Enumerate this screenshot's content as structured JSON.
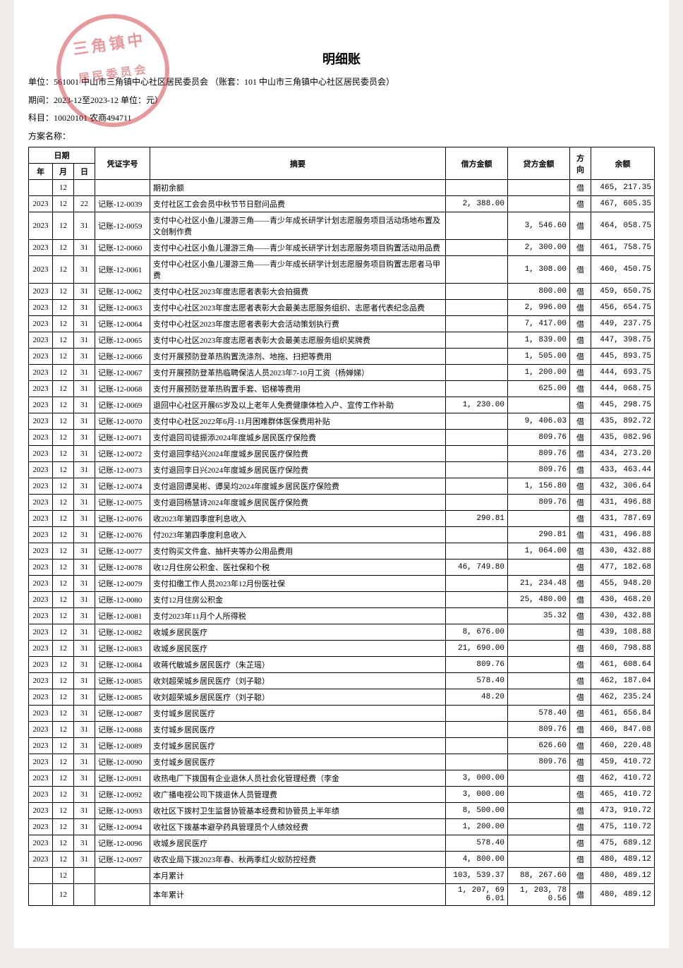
{
  "title": "明细账",
  "meta": {
    "unit": "单位：561001 中山市三角镇中心社区居民委员会   （账套：101 中山市三角镇中心社区居民委员会）",
    "period": "期间：2023-12至2023-12   单位：元）",
    "subject": "科目：10020101 农商494711",
    "plan": "方案名称："
  },
  "headers": {
    "date": "日期",
    "year": "年",
    "month": "月",
    "day": "日",
    "voucher": "凭证字号",
    "summary": "摘要",
    "debit": "借方金额",
    "credit": "贷方金额",
    "dir": "方向",
    "balance": "余额"
  },
  "stamp_text1": "三角镇中",
  "stamp_text2": "居民委员会",
  "rows": [
    {
      "year": "",
      "month": "12",
      "day": "",
      "voucher": "",
      "summary": "期初余额",
      "debit": "",
      "credit": "",
      "dir": "借",
      "balance": "465, 217.35"
    },
    {
      "year": "2023",
      "month": "12",
      "day": "22",
      "voucher": "记账-12-0039",
      "summary": "支付社区工会会员中秋节节日慰问品费",
      "debit": "2, 388.00",
      "credit": "",
      "dir": "借",
      "balance": "467, 605.35"
    },
    {
      "year": "2023",
      "month": "12",
      "day": "31",
      "voucher": "记账-12-0059",
      "summary": "支付中心社区小鱼儿漫游三角——青少年成长研学计划志愿服务项目活动场地布置及文创制作费",
      "debit": "",
      "credit": "3, 546.60",
      "dir": "借",
      "balance": "464, 058.75"
    },
    {
      "year": "2023",
      "month": "12",
      "day": "31",
      "voucher": "记账-12-0060",
      "summary": "支付中心社区小鱼儿漫游三角——青少年成长研学计划志愿服务项目购置活动用品费",
      "debit": "",
      "credit": "2, 300.00",
      "dir": "借",
      "balance": "461, 758.75"
    },
    {
      "year": "2023",
      "month": "12",
      "day": "31",
      "voucher": "记账-12-0061",
      "summary": "支付中心社区小鱼儿漫游三角——青少年成长研学计划志愿服务项目购置志愿者马甲费",
      "debit": "",
      "credit": "1, 308.00",
      "dir": "借",
      "balance": "460, 450.75"
    },
    {
      "year": "2023",
      "month": "12",
      "day": "31",
      "voucher": "记账-12-0062",
      "summary": "支付中心社区2023年度志愿者表彰大会拍摄费",
      "debit": "",
      "credit": "800.00",
      "dir": "借",
      "balance": "459, 650.75"
    },
    {
      "year": "2023",
      "month": "12",
      "day": "31",
      "voucher": "记账-12-0063",
      "summary": "支付中心社区2023年度志愿者表彰大会最美志愿服务组织、志愿者代表纪念品费",
      "debit": "",
      "credit": "2, 996.00",
      "dir": "借",
      "balance": "456, 654.75"
    },
    {
      "year": "2023",
      "month": "12",
      "day": "31",
      "voucher": "记账-12-0064",
      "summary": "支付中心社区2023年度志愿者表彰大会活动策划执行费",
      "debit": "",
      "credit": "7, 417.00",
      "dir": "借",
      "balance": "449, 237.75"
    },
    {
      "year": "2023",
      "month": "12",
      "day": "31",
      "voucher": "记账-12-0065",
      "summary": "支付中心社区2023年度志愿者表彰大会最美志愿服务组织奖牌费",
      "debit": "",
      "credit": "1, 839.00",
      "dir": "借",
      "balance": "447, 398.75"
    },
    {
      "year": "2023",
      "month": "12",
      "day": "31",
      "voucher": "记账-12-0066",
      "summary": "支付开展预防登革热购置洗涤剂、地拖、扫把等费用",
      "debit": "",
      "credit": "1, 505.00",
      "dir": "借",
      "balance": "445, 893.75"
    },
    {
      "year": "2023",
      "month": "12",
      "day": "31",
      "voucher": "记账-12-0067",
      "summary": "支付开展预防登革热临聘保洁人员2023年7-10月工资（杨婵娣）",
      "debit": "",
      "credit": "1, 200.00",
      "dir": "借",
      "balance": "444, 693.75"
    },
    {
      "year": "2023",
      "month": "12",
      "day": "31",
      "voucher": "记账-12-0068",
      "summary": "支付开展预防登革热购置手套、铝梯等费用",
      "debit": "",
      "credit": "625.00",
      "dir": "借",
      "balance": "444, 068.75"
    },
    {
      "year": "2023",
      "month": "12",
      "day": "31",
      "voucher": "记账-12-0069",
      "summary": "退回中心社区开展65岁及以上老年人免费健康体检入户、宣传工作补助",
      "debit": "1, 230.00",
      "credit": "",
      "dir": "借",
      "balance": "445, 298.75"
    },
    {
      "year": "2023",
      "month": "12",
      "day": "31",
      "voucher": "记账-12-0070",
      "summary": "支付中心社区2022年6月-11月困难群体医保费用补贴",
      "debit": "",
      "credit": "9, 406.03",
      "dir": "借",
      "balance": "435, 892.72"
    },
    {
      "year": "2023",
      "month": "12",
      "day": "31",
      "voucher": "记账-12-0071",
      "summary": "支付退回司徒振添2024年度城乡居民医疗保险费",
      "debit": "",
      "credit": "809.76",
      "dir": "借",
      "balance": "435, 082.96"
    },
    {
      "year": "2023",
      "month": "12",
      "day": "31",
      "voucher": "记账-12-0072",
      "summary": "支付退回李结兴2024年度城乡居民医疗保险费",
      "debit": "",
      "credit": "809.76",
      "dir": "借",
      "balance": "434, 273.20"
    },
    {
      "year": "2023",
      "month": "12",
      "day": "31",
      "voucher": "记账-12-0073",
      "summary": "支付退回李日兴2024年度城乡居民医疗保险费",
      "debit": "",
      "credit": "809.76",
      "dir": "借",
      "balance": "433, 463.44"
    },
    {
      "year": "2023",
      "month": "12",
      "day": "31",
      "voucher": "记账-12-0074",
      "summary": "支付退回谭吴彬、谭吴均2024年度城乡居民医疗保险费",
      "debit": "",
      "credit": "1, 156.80",
      "dir": "借",
      "balance": "432, 306.64"
    },
    {
      "year": "2023",
      "month": "12",
      "day": "31",
      "voucher": "记账-12-0075",
      "summary": "支付退回杨慧诗2024年度城乡居民医疗保险费",
      "debit": "",
      "credit": "809.76",
      "dir": "借",
      "balance": "431, 496.88"
    },
    {
      "year": "2023",
      "month": "12",
      "day": "31",
      "voucher": "记账-12-0076",
      "summary": "收2023年第四季度利息收入",
      "debit": "290.81",
      "credit": "",
      "dir": "借",
      "balance": "431, 787.69"
    },
    {
      "year": "2023",
      "month": "12",
      "day": "31",
      "voucher": "记账-12-0076",
      "summary": "付2023年第四季度利息收入",
      "debit": "",
      "credit": "290.81",
      "dir": "借",
      "balance": "431, 496.88"
    },
    {
      "year": "2023",
      "month": "12",
      "day": "31",
      "voucher": "记账-12-0077",
      "summary": "支付购买文件盒、抽杆夹等办公用品费用",
      "debit": "",
      "credit": "1, 064.00",
      "dir": "借",
      "balance": "430, 432.88"
    },
    {
      "year": "2023",
      "month": "12",
      "day": "31",
      "voucher": "记账-12-0078",
      "summary": "收12月住房公积金、医社保和个税",
      "debit": "46, 749.80",
      "credit": "",
      "dir": "借",
      "balance": "477, 182.68"
    },
    {
      "year": "2023",
      "month": "12",
      "day": "31",
      "voucher": "记账-12-0079",
      "summary": "支付扣缴工作人员2023年12月份医社保",
      "debit": "",
      "credit": "21, 234.48",
      "dir": "借",
      "balance": "455, 948.20"
    },
    {
      "year": "2023",
      "month": "12",
      "day": "31",
      "voucher": "记账-12-0080",
      "summary": "支付12月住房公积金",
      "debit": "",
      "credit": "25, 480.00",
      "dir": "借",
      "balance": "430, 468.20"
    },
    {
      "year": "2023",
      "month": "12",
      "day": "31",
      "voucher": "记账-12-0081",
      "summary": "支付2023年11月个人所得税",
      "debit": "",
      "credit": "35.32",
      "dir": "借",
      "balance": "430, 432.88"
    },
    {
      "year": "2023",
      "month": "12",
      "day": "31",
      "voucher": "记账-12-0082",
      "summary": "收城乡居民医疗",
      "debit": "8, 676.00",
      "credit": "",
      "dir": "借",
      "balance": "439, 108.88"
    },
    {
      "year": "2023",
      "month": "12",
      "day": "31",
      "voucher": "记账-12-0083",
      "summary": "收城乡居民医疗",
      "debit": "21, 690.00",
      "credit": "",
      "dir": "借",
      "balance": "460, 798.88"
    },
    {
      "year": "2023",
      "month": "12",
      "day": "31",
      "voucher": "记账-12-0084",
      "summary": "收蒋代敏城乡居民医疗（朱芷瑶）",
      "debit": "809.76",
      "credit": "",
      "dir": "借",
      "balance": "461, 608.64"
    },
    {
      "year": "2023",
      "month": "12",
      "day": "31",
      "voucher": "记账-12-0085",
      "summary": "收刘超荣城乡居民医疗（刘子聪）",
      "debit": "578.40",
      "credit": "",
      "dir": "借",
      "balance": "462, 187.04"
    },
    {
      "year": "2023",
      "month": "12",
      "day": "31",
      "voucher": "记账-12-0085",
      "summary": "收刘超荣城乡居民医疗（刘子聪）",
      "debit": "48.20",
      "credit": "",
      "dir": "借",
      "balance": "462, 235.24"
    },
    {
      "year": "2023",
      "month": "12",
      "day": "31",
      "voucher": "记账-12-0087",
      "summary": "支付城乡居民医疗",
      "debit": "",
      "credit": "578.40",
      "dir": "借",
      "balance": "461, 656.84"
    },
    {
      "year": "2023",
      "month": "12",
      "day": "31",
      "voucher": "记账-12-0088",
      "summary": "支付城乡居民医疗",
      "debit": "",
      "credit": "809.76",
      "dir": "借",
      "balance": "460, 847.08"
    },
    {
      "year": "2023",
      "month": "12",
      "day": "31",
      "voucher": "记账-12-0089",
      "summary": "支付城乡居民医疗",
      "debit": "",
      "credit": "626.60",
      "dir": "借",
      "balance": "460, 220.48"
    },
    {
      "year": "2023",
      "month": "12",
      "day": "31",
      "voucher": "记账-12-0090",
      "summary": "支付城乡居民医疗",
      "debit": "",
      "credit": "809.76",
      "dir": "借",
      "balance": "459, 410.72"
    },
    {
      "year": "2023",
      "month": "12",
      "day": "31",
      "voucher": "记账-12-0091",
      "summary": "收热电厂下拨国有企业退休人员社会化管理经费（李金",
      "debit": "3, 000.00",
      "credit": "",
      "dir": "借",
      "balance": "462, 410.72"
    },
    {
      "year": "2023",
      "month": "12",
      "day": "31",
      "voucher": "记账-12-0092",
      "summary": "收广播电视公司下拨退休人员管理费",
      "debit": "3, 000.00",
      "credit": "",
      "dir": "借",
      "balance": "465, 410.72"
    },
    {
      "year": "2023",
      "month": "12",
      "day": "31",
      "voucher": "记账-12-0093",
      "summary": "收社区下拨村卫生监督协管基本经费和协管员上半年绩",
      "debit": "8, 500.00",
      "credit": "",
      "dir": "借",
      "balance": "473, 910.72"
    },
    {
      "year": "2023",
      "month": "12",
      "day": "31",
      "voucher": "记账-12-0094",
      "summary": "收社区下拨基本避孕药具管理员个人绩效经费",
      "debit": "1, 200.00",
      "credit": "",
      "dir": "借",
      "balance": "475, 110.72"
    },
    {
      "year": "2023",
      "month": "12",
      "day": "31",
      "voucher": "记账-12-0096",
      "summary": "收城乡居民医疗",
      "debit": "578.40",
      "credit": "",
      "dir": "借",
      "balance": "475, 689.12"
    },
    {
      "year": "2023",
      "month": "12",
      "day": "31",
      "voucher": "记账-12-0097",
      "summary": "收农业局下拨2023年春、秋两季红火蚁防控经费",
      "debit": "4, 800.00",
      "credit": "",
      "dir": "借",
      "balance": "480, 489.12"
    },
    {
      "year": "",
      "month": "12",
      "day": "",
      "voucher": "",
      "summary": "本月累计",
      "debit": "103, 539.37",
      "credit": "88, 267.60",
      "dir": "借",
      "balance": "480, 489.12"
    },
    {
      "year": "",
      "month": "12",
      "day": "",
      "voucher": "",
      "summary": "本年累计",
      "debit": "1, 207, 696.01",
      "credit": "1, 203, 780.56",
      "dir": "借",
      "balance": "480, 489.12"
    }
  ]
}
